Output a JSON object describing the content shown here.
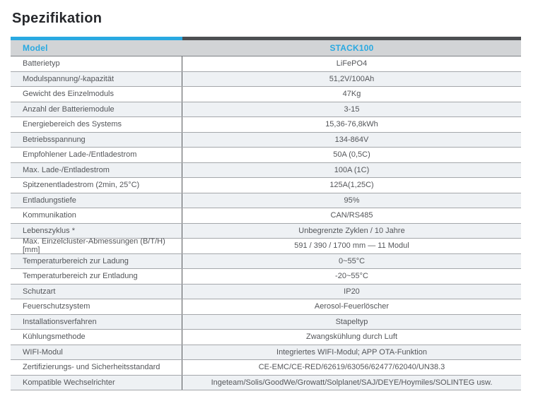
{
  "page": {
    "title": "Spezifikation"
  },
  "colors": {
    "accent_blue": "#29a9e1",
    "bar_dark": "#4d4f52",
    "header_bg": "#d2d4d6",
    "stripe_bg": "#eef1f4",
    "text": "#54565a"
  },
  "table": {
    "header": {
      "model_label": "Model",
      "model_value": "STACK100"
    },
    "rows": [
      {
        "label": "Batterietyp",
        "value": "LiFePO4"
      },
      {
        "label": "Modulspannung/-kapazität",
        "value": "51,2V/100Ah"
      },
      {
        "label": "Gewicht des Einzelmoduls",
        "value": "47Kg"
      },
      {
        "label": "Anzahl der Batteriemodule",
        "value": "3-15"
      },
      {
        "label": "Energiebereich des Systems",
        "value": "15,36-76,8kWh"
      },
      {
        "label": "Betriebsspannung",
        "value": "134-864V"
      },
      {
        "label": "Empfohlener Lade-/Entladestrom",
        "value": "50A (0,5C)"
      },
      {
        "label": "Max. Lade-/Entladestrom",
        "value": "100A (1C)"
      },
      {
        "label": "Spitzenentladestrom (2min, 25°C)",
        "value": "125A(1,25C)"
      },
      {
        "label": "Entladungstiefe",
        "value": "95%"
      },
      {
        "label": "Kommunikation",
        "value": "CAN/RS485"
      },
      {
        "label": "Lebenszyklus *",
        "value": "Unbegrenzte Zyklen / 10 Jahre"
      },
      {
        "label": "Max. Einzelcluster-Abmessungen (B/T/H) [mm]",
        "value": "591 / 390 / 1700 mm — 11 Modul"
      },
      {
        "label": "Temperaturbereich zur Ladung",
        "value": "0~55°C"
      },
      {
        "label": "Temperaturbereich zur Entladung",
        "value": "-20~55°C"
      },
      {
        "label": "Schutzart",
        "value": "IP20"
      },
      {
        "label": "Feuerschutzsystem",
        "value": "Aerosol-Feuerlöscher"
      },
      {
        "label": "Installationsverfahren",
        "value": "Stapeltyp"
      },
      {
        "label": "Kühlungsmethode",
        "value": "Zwangskühlung durch Luft"
      },
      {
        "label": "WIFI-Modul",
        "value": "Integriertes WIFI-Modul; APP OTA-Funktion"
      },
      {
        "label": "Zertifizierungs- und Sicherheitsstandard",
        "value": "CE-EMC/CE-RED/62619/63056/62477/62040/UN38.3"
      },
      {
        "label": "Kompatible Wechselrichter",
        "value": "Ingeteam/Solis/GoodWe/Growatt/Solplanet/SAJ/DEYE/Hoymiles/SOLINTEG usw."
      }
    ]
  }
}
